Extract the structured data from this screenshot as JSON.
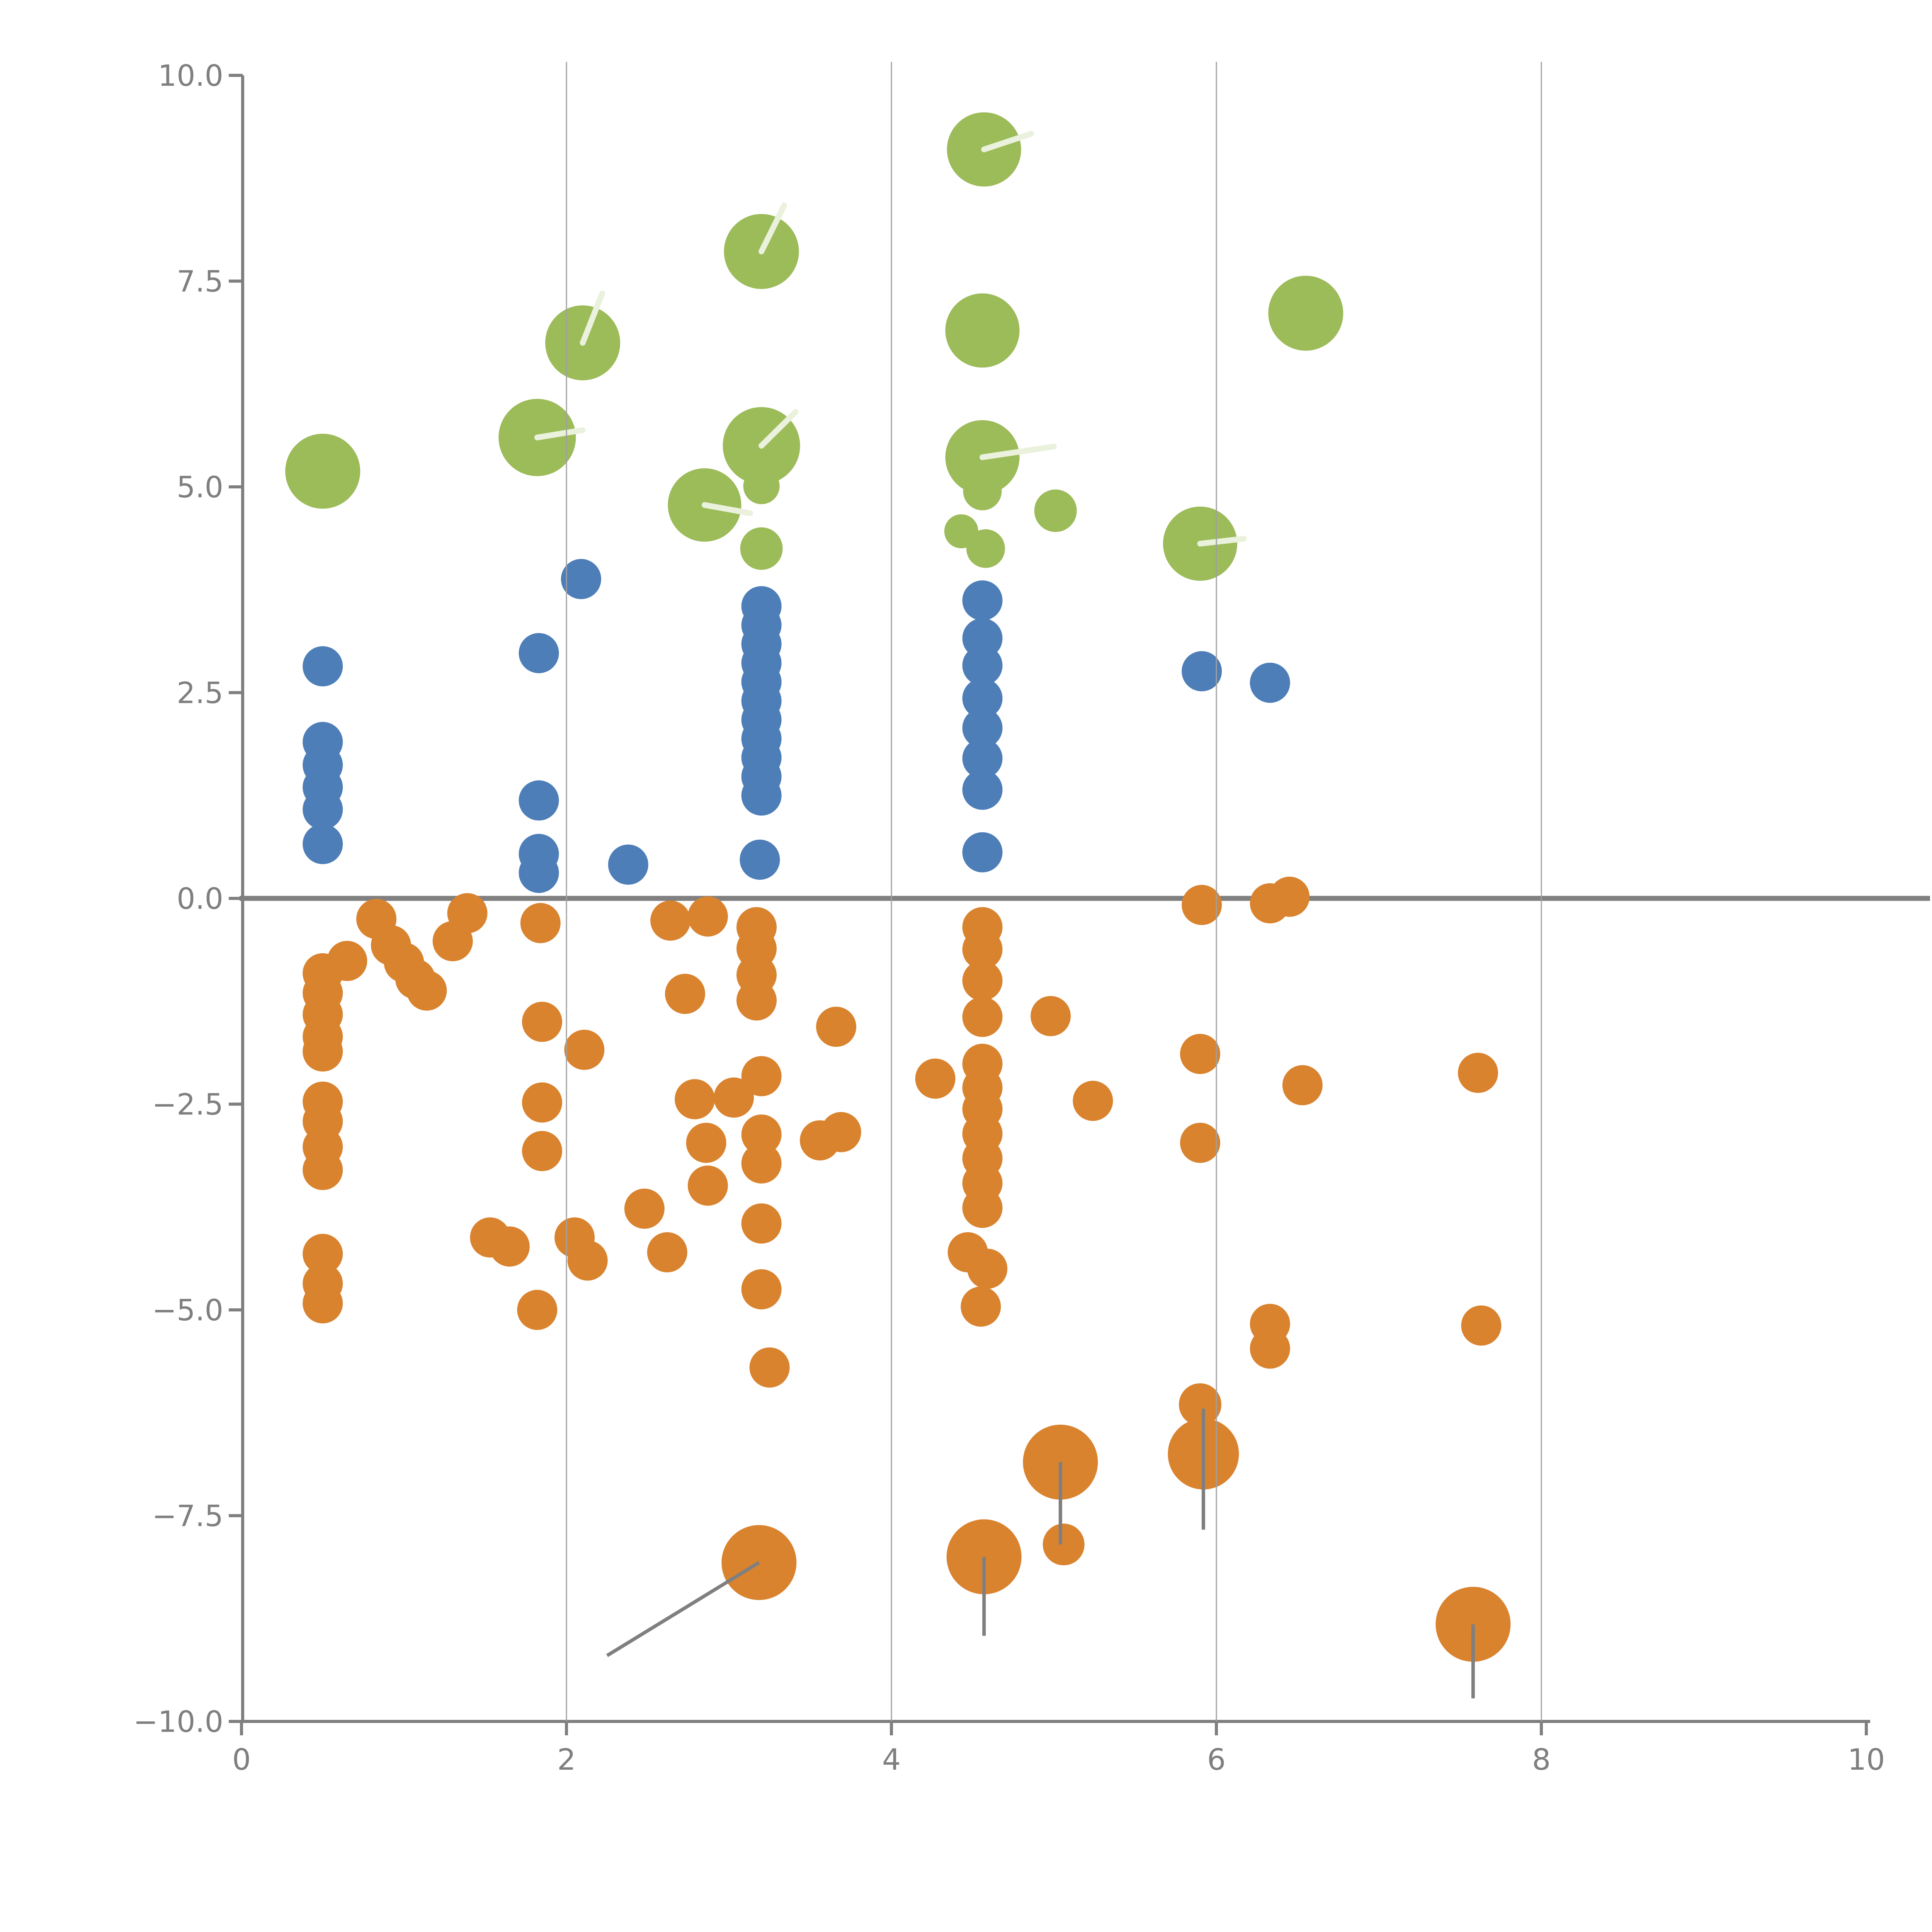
{
  "chart_data": {
    "type": "scatter",
    "title": "",
    "xlabel": "",
    "ylabel": "",
    "xlim": [
      0,
      10
    ],
    "ylim": [
      -10,
      10
    ],
    "grid": "vertical-only",
    "legend_position": "none",
    "xticks": {
      "values": [
        0,
        2,
        4,
        6,
        8,
        10
      ],
      "labels": [
        "0",
        "2",
        "4",
        "6",
        "8",
        "10"
      ]
    },
    "yticks": {
      "values": [
        10,
        7.5,
        5,
        2.5,
        0,
        -2.5,
        -5,
        -7.5,
        -10
      ],
      "labels": [
        "10.0",
        "7.5",
        "5.0",
        "2.5",
        "0.0",
        "−2.5",
        "−5.0",
        "−7.5",
        "−10.0"
      ]
    },
    "gridlines_x": [
      2,
      4,
      6,
      8
    ],
    "zero_line_y": 0,
    "series": [
      {
        "name": "green-bubbles",
        "color": "#9cbb59",
        "default_radius": 52,
        "points": [
          [
            0.5,
            5.19,
            97
          ],
          [
            1.82,
            5.6,
            100
          ],
          [
            2.1,
            6.75,
            97
          ],
          [
            3.2,
            7.86,
            97
          ],
          [
            3.2,
            5.5,
            100
          ],
          [
            2.85,
            4.78,
            95
          ],
          [
            3.2,
            5.01,
            47
          ],
          [
            3.2,
            4.25,
            55
          ],
          [
            4.57,
            9.1,
            96
          ],
          [
            4.56,
            6.9,
            96
          ],
          [
            4.56,
            5.36,
            96
          ],
          [
            4.56,
            4.95,
            50
          ],
          [
            4.43,
            4.46,
            44
          ],
          [
            4.58,
            4.25,
            50
          ],
          [
            5.01,
            4.71,
            55
          ],
          [
            5.9,
            4.31,
            96
          ],
          [
            6.55,
            7.11,
            97
          ]
        ]
      },
      {
        "name": "blue-dots",
        "color": "#4d7eb8",
        "default_radius": 52,
        "points": [
          [
            0.5,
            2.82
          ],
          [
            0.5,
            1.9
          ],
          [
            0.5,
            1.62
          ],
          [
            0.5,
            1.35
          ],
          [
            0.5,
            1.08
          ],
          [
            0.5,
            0.66
          ],
          [
            1.83,
            2.98
          ],
          [
            1.83,
            1.19
          ],
          [
            1.83,
            0.54
          ],
          [
            1.83,
            0.31
          ],
          [
            2.09,
            3.88
          ],
          [
            2.38,
            0.41
          ],
          [
            3.2,
            3.55
          ],
          [
            3.2,
            3.32
          ],
          [
            3.2,
            3.09
          ],
          [
            3.2,
            2.86
          ],
          [
            3.2,
            2.63
          ],
          [
            3.2,
            2.4
          ],
          [
            3.2,
            2.17
          ],
          [
            3.2,
            1.94
          ],
          [
            3.2,
            1.71
          ],
          [
            3.2,
            1.48
          ],
          [
            3.2,
            1.25
          ],
          [
            3.19,
            0.47
          ],
          [
            4.56,
            3.62
          ],
          [
            4.56,
            3.16
          ],
          [
            4.56,
            2.83
          ],
          [
            4.56,
            2.43
          ],
          [
            4.56,
            2.07
          ],
          [
            4.56,
            1.7
          ],
          [
            4.56,
            1.32
          ],
          [
            4.56,
            0.56
          ],
          [
            5.91,
            2.76
          ],
          [
            6.33,
            2.62
          ]
        ]
      },
      {
        "name": "orange-dots",
        "color": "#d9832f",
        "default_radius": 52,
        "points": [
          [
            0.5,
            -0.91
          ],
          [
            0.5,
            -1.15
          ],
          [
            0.5,
            -1.41
          ],
          [
            0.5,
            -1.68
          ],
          [
            0.5,
            -1.86
          ],
          [
            0.5,
            -2.47
          ],
          [
            0.5,
            -2.71
          ],
          [
            0.5,
            -3.02
          ],
          [
            0.5,
            -3.3
          ],
          [
            0.5,
            -4.32
          ],
          [
            0.5,
            -4.68
          ],
          [
            0.5,
            -4.92
          ],
          [
            0.65,
            -0.76
          ],
          [
            0.83,
            -0.25
          ],
          [
            0.92,
            -0.57
          ],
          [
            1.0,
            -0.78
          ],
          [
            1.07,
            -0.98
          ],
          [
            1.14,
            -1.12
          ],
          [
            1.3,
            -0.52
          ],
          [
            1.39,
            -0.18
          ],
          [
            1.84,
            -0.3
          ],
          [
            1.85,
            -1.5
          ],
          [
            1.85,
            -2.48
          ],
          [
            1.85,
            -3.07
          ],
          [
            1.82,
            -5.0
          ],
          [
            2.11,
            -1.84
          ],
          [
            1.53,
            -4.12
          ],
          [
            1.65,
            -4.23
          ],
          [
            2.05,
            -4.12
          ],
          [
            2.13,
            -4.4
          ],
          [
            2.48,
            -3.77
          ],
          [
            2.62,
            -4.3
          ],
          [
            2.64,
            -0.27
          ],
          [
            2.87,
            -0.22
          ],
          [
            2.73,
            -1.16
          ],
          [
            3.17,
            -0.35
          ],
          [
            3.17,
            -0.61
          ],
          [
            3.17,
            -0.93
          ],
          [
            3.17,
            -1.24
          ],
          [
            3.66,
            -1.56
          ],
          [
            3.2,
            -2.16
          ],
          [
            3.03,
            -2.42
          ],
          [
            2.79,
            -2.44
          ],
          [
            2.86,
            -2.97
          ],
          [
            2.87,
            -3.49
          ],
          [
            3.2,
            -2.87
          ],
          [
            3.2,
            -3.22
          ],
          [
            3.56,
            -2.94
          ],
          [
            3.69,
            -2.84
          ],
          [
            3.2,
            -3.95
          ],
          [
            3.2,
            -4.75
          ],
          [
            3.25,
            -5.7
          ],
          [
            4.27,
            -2.19
          ],
          [
            4.98,
            -1.43
          ],
          [
            5.24,
            -2.46
          ],
          [
            5.9,
            -1.89
          ],
          [
            5.9,
            -2.97
          ],
          [
            6.53,
            -2.27
          ],
          [
            7.61,
            -2.12
          ],
          [
            5.91,
            -0.08
          ],
          [
            6.33,
            -0.06
          ],
          [
            6.45,
            0.02
          ],
          [
            4.56,
            -0.35
          ],
          [
            4.56,
            -0.62
          ],
          [
            4.56,
            -1.0
          ],
          [
            4.56,
            -1.44
          ],
          [
            4.56,
            -2.01
          ],
          [
            4.56,
            -2.3
          ],
          [
            4.56,
            -2.56
          ],
          [
            4.56,
            -2.86
          ],
          [
            4.56,
            -3.16
          ],
          [
            4.56,
            -3.46
          ],
          [
            4.56,
            -3.76
          ],
          [
            4.47,
            -4.3
          ],
          [
            4.59,
            -4.5
          ],
          [
            4.55,
            -4.96
          ],
          [
            6.33,
            -5.17
          ],
          [
            6.33,
            -5.47
          ],
          [
            7.63,
            -5.19
          ],
          [
            3.185,
            -8.07,
            97
          ],
          [
            4.57,
            -8.0,
            97
          ],
          [
            5.04,
            -6.85,
            97
          ],
          [
            5.06,
            -7.85,
            54
          ],
          [
            5.92,
            -6.75,
            92
          ],
          [
            5.9,
            -6.15,
            55
          ],
          [
            7.58,
            -8.82,
            97
          ]
        ]
      }
    ],
    "whisker_lines": [
      {
        "x1": 3.185,
        "y1": -8.07,
        "x2": 2.25,
        "y2": -9.2
      },
      {
        "x1": 4.57,
        "y1": -8.0,
        "x2": 4.57,
        "y2": -8.96
      },
      {
        "x1": 5.04,
        "y1": -6.85,
        "x2": 5.04,
        "y2": -7.85
      },
      {
        "x1": 5.92,
        "y1": -6.2,
        "x2": 5.92,
        "y2": -7.67
      },
      {
        "x1": 7.58,
        "y1": -8.82,
        "x2": 7.58,
        "y2": -9.72
      }
    ],
    "bubble_slashes": [
      {
        "x1": 1.82,
        "y1": 5.6,
        "x2": 2.1,
        "y2": 5.69
      },
      {
        "x1": 2.1,
        "y1": 6.75,
        "x2": 2.22,
        "y2": 7.35
      },
      {
        "x1": 3.2,
        "y1": 7.86,
        "x2": 3.34,
        "y2": 8.42
      },
      {
        "x1": 3.2,
        "y1": 5.5,
        "x2": 3.41,
        "y2": 5.91
      },
      {
        "x1": 2.85,
        "y1": 4.78,
        "x2": 3.13,
        "y2": 4.68
      },
      {
        "x1": 4.57,
        "y1": 9.1,
        "x2": 4.86,
        "y2": 9.29
      },
      {
        "x1": 4.56,
        "y1": 5.36,
        "x2": 5.0,
        "y2": 5.49
      },
      {
        "x1": 5.9,
        "y1": 4.31,
        "x2": 6.17,
        "y2": 4.37
      }
    ]
  },
  "style": {
    "background": "#ffffff",
    "axis_color": "#7f7f7f",
    "grid_color": "#a0a0a0",
    "zero_line_color": "#808080",
    "whisker_color": "#7f7f7f",
    "slash_color": "#eaf1dc",
    "green": "#9cbb59",
    "blue": "#4d7eb8",
    "orange": "#d9832f"
  }
}
